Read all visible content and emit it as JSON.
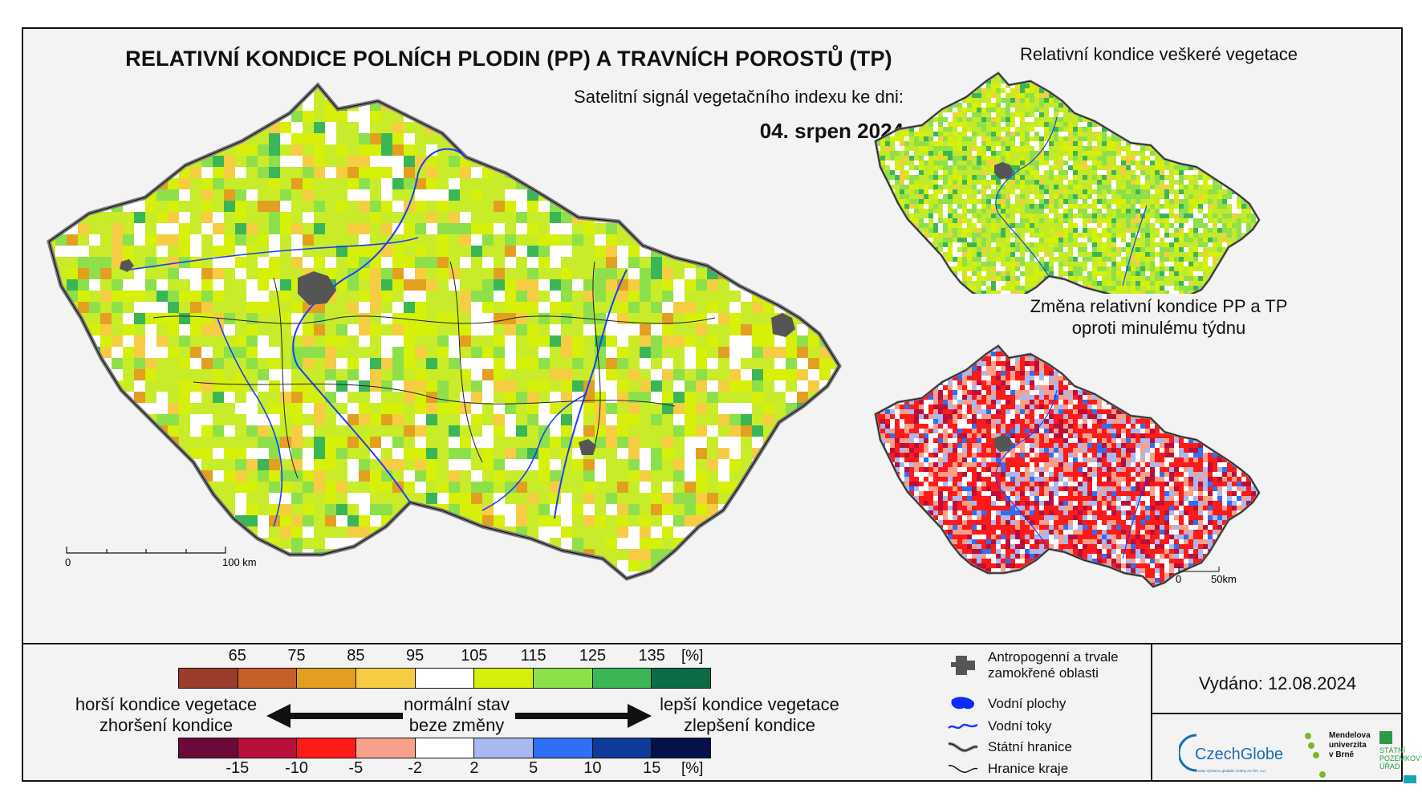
{
  "header": {
    "title": "RELATIVNÍ KONDICE POLNÍCH PLODIN (PP) A TRAVNÍCH POROSTŮ (TP)",
    "subtitle": "Satelitní signál vegetačního indexu ke dni:",
    "date": "04. srpen 2024"
  },
  "main_map": {
    "scale_start": "0",
    "scale_end": "100 km"
  },
  "inset_top": {
    "title": "Relativní kondice veškeré vegetace"
  },
  "inset_bottom": {
    "title_line1": "Změna relativní kondice PP a TP",
    "title_line2": "oproti minulému týdnu",
    "scale_start": "0",
    "scale_end": "50km"
  },
  "legend": {
    "top_ticks": [
      "65",
      "75",
      "85",
      "95",
      "105",
      "115",
      "125",
      "135"
    ],
    "top_unit": "[%]",
    "top_colors": [
      "#9b3b2a",
      "#c5602a",
      "#e3a020",
      "#f6cd42",
      "#ffffff",
      "#d6f00a",
      "#8ee04a",
      "#3bb657",
      "#0b6b45"
    ],
    "bottom_ticks": [
      "-15",
      "-10",
      "-5",
      "-2",
      "2",
      "5",
      "10",
      "15"
    ],
    "bottom_unit": "[%]",
    "bottom_colors": [
      "#6b0a3a",
      "#b8103a",
      "#ff1a1a",
      "#f8a08a",
      "#ffffff",
      "#a8b8f0",
      "#2f6ef5",
      "#0f3a9a",
      "#07104a"
    ],
    "worse_line1": "horší kondice vegetace",
    "worse_line2": "zhoršení kondice",
    "normal_line1": "normální stav",
    "normal_line2": "beze změny",
    "better_line1": "lepší kondice vegetace",
    "better_line2": "zlepšení kondice"
  },
  "key": {
    "items": [
      {
        "icon": "urban-area-icon",
        "line1": "Antropogenní a trvale",
        "line2": "zamokřené oblasti"
      },
      {
        "icon": "water-body-icon",
        "line1": "Vodní plochy",
        "line2": ""
      },
      {
        "icon": "river-icon",
        "line1": "Vodní toky",
        "line2": ""
      },
      {
        "icon": "state-border-icon",
        "line1": "Státní hranice",
        "line2": ""
      },
      {
        "icon": "region-border-icon",
        "line1": "Hranice kraje",
        "line2": ""
      }
    ]
  },
  "footer": {
    "issued": "Vydáno: 12.08.2024",
    "logo_czechglobe": "CzechGlobe",
    "logo_czechglobe_sub": "Ústav výzkumu globální změny AV ČR, v.v.i.",
    "logo_mendel_line1": "Mendelova",
    "logo_mendel_line2": "univerzita",
    "logo_mendel_line3": "v Brně",
    "logo_spu_line1": "STÁTNÍ",
    "logo_spu_line2": "POZEMKOVÝ",
    "logo_spu_line3": "ÚŘAD"
  }
}
